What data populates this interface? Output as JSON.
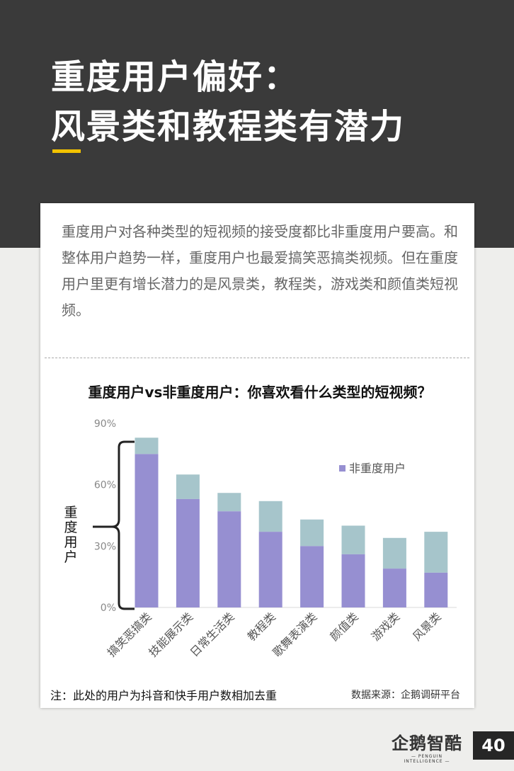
{
  "header": {
    "title_line1": "重度用户偏好：",
    "title_line2": "风景类和教程类有潜力"
  },
  "intro": "重度用户对各种类型的短视频的接受度都比非重度用户要高。和整体用户趋势一样，重度用户也最爱搞笑恶搞类视频。但在重度用户里更有增长潜力的是风景类，教程类，游戏类和颜值类短视频。",
  "chart_data": {
    "type": "bar",
    "title": "重度用户vs非重度用户：你喜欢看什么类型的短视频？",
    "categories": [
      "搞笑恶搞类",
      "技能展示类",
      "日常生活类",
      "教程类",
      "歌舞表演类",
      "颜值类",
      "游戏类",
      "风景类"
    ],
    "series": [
      {
        "name": "非重度用户",
        "values": [
          75,
          53,
          47,
          37,
          30,
          26,
          19,
          17
        ],
        "color": "#968fd1"
      },
      {
        "name": "重度用户",
        "values": [
          83,
          65,
          56,
          52,
          43,
          40,
          34,
          37
        ],
        "color": "#a6c5cb"
      }
    ],
    "ylim": [
      0,
      90
    ],
    "yticks": [
      "0%",
      "30%",
      "60%",
      "90%"
    ],
    "legend": "top-right",
    "brace_label": "重度用户"
  },
  "footer": {
    "note": "注：此处的用户为抖音和快手用户数相加去重",
    "source": "数据来源：企鹅调研平台"
  },
  "logo": {
    "cn": "企鹅智酷",
    "en": "— PENGUIN INTELLIGENCE —"
  },
  "page_number": "40"
}
